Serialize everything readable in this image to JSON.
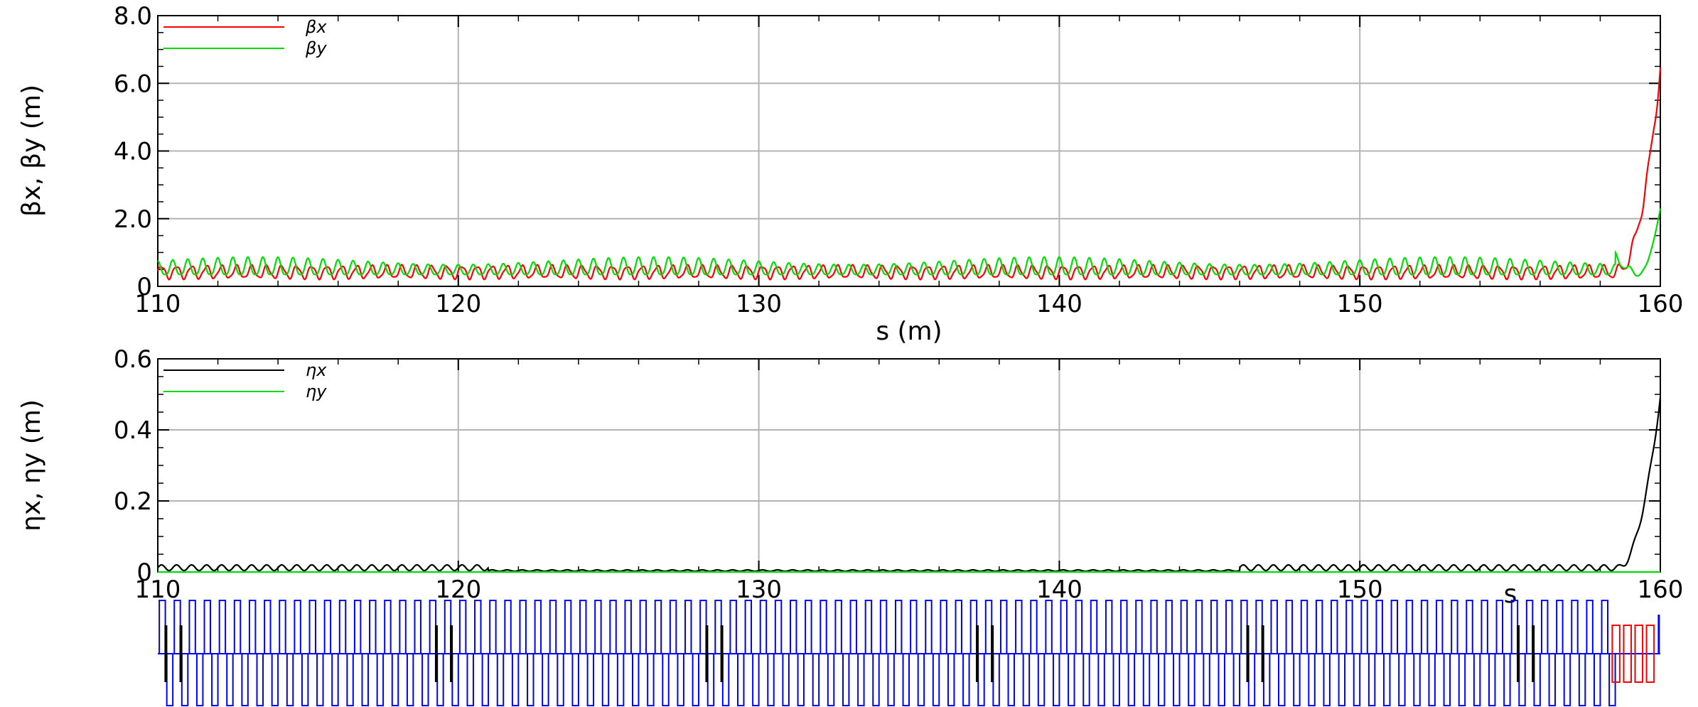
{
  "chart_data": [
    {
      "type": "line",
      "title": "",
      "xlabel": "s (m)",
      "ylabel": "βx, βy (m)",
      "xlim": [
        110,
        160
      ],
      "ylim": [
        0,
        8.0
      ],
      "grid": true,
      "legend_position": "top-left",
      "x_ticks": [
        110,
        120,
        130,
        140,
        150,
        160
      ],
      "x_tick_labels": [
        "110",
        "120",
        "130",
        "140",
        "150",
        "160"
      ],
      "y_ticks": [
        0,
        2.0,
        4.0,
        6.0,
        8.0
      ],
      "y_tick_labels": [
        "0",
        "2.0",
        "4.0",
        "6.0",
        "8.0"
      ],
      "series": [
        {
          "name": "βx",
          "color": "#ff0000",
          "description": "periodic oscillation between ~0.25 and ~0.65 with period ~0.5 m, rising sharply from s≈158.5 to 6.5 at s=160",
          "x": [
            110,
            158.5,
            159.0,
            159.5,
            160.0
          ],
          "y": [
            0.4,
            0.5,
            1.4,
            3.5,
            6.5
          ]
        },
        {
          "name": "βy",
          "color": "#00dd00",
          "description": "periodic oscillation between ~0.3 and ~1.1 with period ~0.5 m, dipping near s≈159.3 then rising to 2.5 at s=160",
          "x": [
            110,
            158.5,
            159.3,
            159.8,
            160.0
          ],
          "y": [
            0.6,
            0.6,
            0.3,
            1.4,
            2.5
          ]
        }
      ]
    },
    {
      "type": "line",
      "title": "",
      "xlabel": "s",
      "ylabel": "ηx, ηy (m)",
      "xlim": [
        110,
        160
      ],
      "ylim": [
        0,
        0.6
      ],
      "grid": true,
      "legend_position": "top-left",
      "x_ticks": [
        110,
        120,
        130,
        140,
        150,
        160
      ],
      "x_tick_labels": [
        "110",
        "120",
        "130",
        "140",
        "150",
        "160"
      ],
      "y_ticks": [
        0,
        0.2,
        0.4,
        0.6
      ],
      "y_tick_labels": [
        "0",
        "0.2",
        "0.4",
        "0.6"
      ],
      "series": [
        {
          "name": "ηx",
          "color": "#000000",
          "description": "small periodic ripple ~0.01-0.02, near zero in the middle, rising sharply after s≈158.5 to 0.5 at s=160",
          "x": [
            110,
            120,
            125,
            145,
            150,
            158.5,
            159.2,
            160.0
          ],
          "y": [
            0.015,
            0.015,
            0.005,
            0.005,
            0.015,
            0.02,
            0.15,
            0.5
          ]
        },
        {
          "name": "ηy",
          "color": "#00dd00",
          "description": "zero everywhere",
          "x": [
            110,
            160
          ],
          "y": [
            0,
            0
          ]
        }
      ]
    }
  ],
  "lattice": {
    "colors": {
      "bend": "#0000ff",
      "quad": "#ff0000",
      "marker": "#000000"
    }
  }
}
